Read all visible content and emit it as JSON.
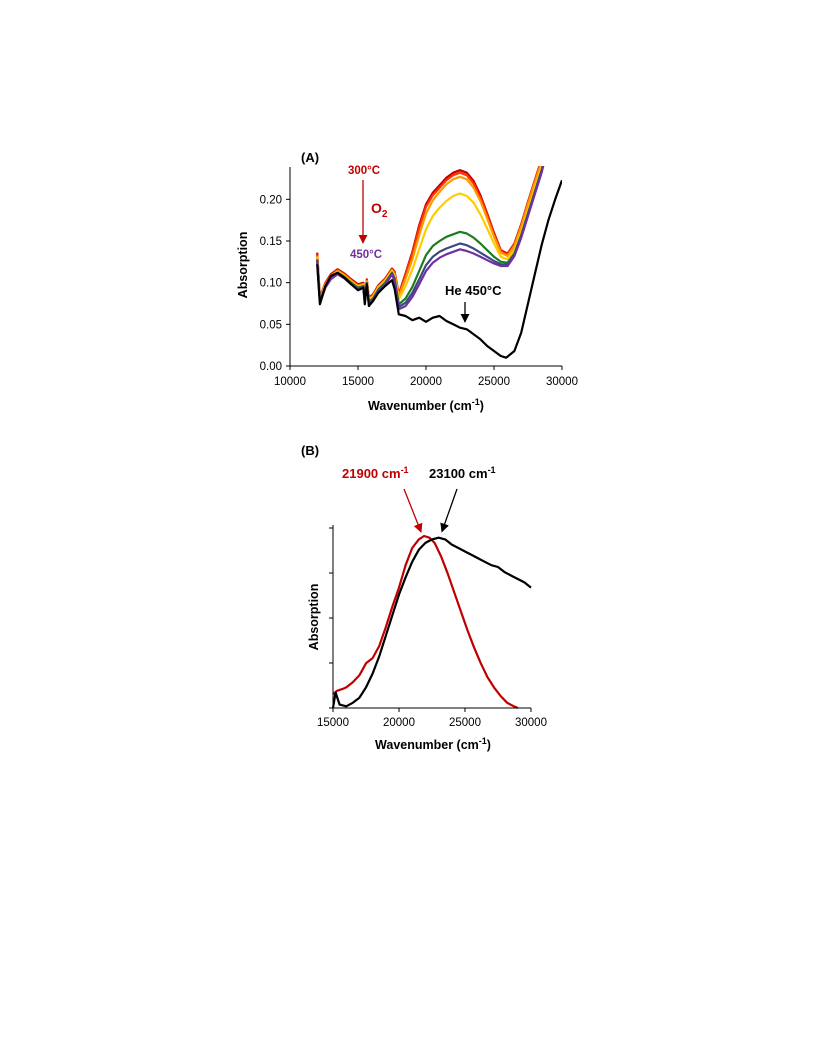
{
  "chart_data": [
    {
      "panel": "(A)",
      "type": "line",
      "xlabel": "Wavenumber (cm",
      "xlabel_sup": "-1",
      "xlabel_end": ")",
      "ylabel": "Absorption",
      "xlim": [
        10000,
        30000
      ],
      "ylim": [
        0,
        0.24
      ],
      "x_ticks": [
        10000,
        15000,
        20000,
        25000,
        30000
      ],
      "y_ticks": [
        "0.00",
        "0.05",
        "0.10",
        "0.15",
        "0.20"
      ],
      "grid": false,
      "annotations": {
        "start_temp": "300°C",
        "end_temp": "450°C",
        "gas": "O",
        "gas_sub": "2",
        "he_label": "He 450°C"
      },
      "colors": {
        "arrow_red": "#c00000",
        "purple_text": "#7030a0",
        "arrow_black": "#000000"
      },
      "series": [
        {
          "color": "#c00000",
          "x": [
            12000,
            12200,
            12600,
            13000,
            13500,
            14000,
            14500,
            15000,
            15400,
            15500,
            15650,
            15800,
            16100,
            16500,
            17000,
            17500,
            17700,
            18000,
            18500,
            19000,
            19500,
            20000,
            20500,
            21000,
            21500,
            22000,
            22500,
            23000,
            23500,
            24000,
            24500,
            25000,
            25500,
            26000,
            26500,
            27000,
            27500,
            28000,
            28500,
            28800
          ],
          "y": [
            0.136,
            0.082,
            0.1,
            0.11,
            0.116,
            0.111,
            0.104,
            0.098,
            0.1,
            0.082,
            0.104,
            0.082,
            0.086,
            0.097,
            0.105,
            0.117,
            0.113,
            0.086,
            0.111,
            0.137,
            0.169,
            0.194,
            0.208,
            0.217,
            0.226,
            0.232,
            0.235,
            0.232,
            0.222,
            0.205,
            0.183,
            0.16,
            0.139,
            0.135,
            0.147,
            0.17,
            0.197,
            0.223,
            0.248,
            0.265
          ]
        },
        {
          "color": "#ff3300",
          "x": [
            12000,
            12200,
            12600,
            13000,
            13500,
            14000,
            14500,
            15000,
            15400,
            15500,
            15650,
            15800,
            16100,
            16500,
            17000,
            17500,
            17700,
            18000,
            18500,
            19000,
            19500,
            20000,
            20500,
            21000,
            21500,
            22000,
            22500,
            23000,
            23500,
            24000,
            24500,
            25000,
            25500,
            26000,
            26500,
            27000,
            27500,
            28000,
            28500,
            28800
          ],
          "y": [
            0.134,
            0.081,
            0.099,
            0.109,
            0.115,
            0.11,
            0.103,
            0.097,
            0.099,
            0.081,
            0.103,
            0.081,
            0.085,
            0.096,
            0.104,
            0.116,
            0.112,
            0.085,
            0.109,
            0.135,
            0.166,
            0.191,
            0.205,
            0.214,
            0.223,
            0.229,
            0.232,
            0.229,
            0.219,
            0.202,
            0.181,
            0.158,
            0.138,
            0.134,
            0.146,
            0.169,
            0.196,
            0.222,
            0.247,
            0.264
          ]
        },
        {
          "color": "#ff9900",
          "x": [
            12000,
            12200,
            12600,
            13000,
            13500,
            14000,
            14500,
            15000,
            15400,
            15500,
            15650,
            15800,
            16100,
            16500,
            17000,
            17500,
            17700,
            18000,
            18500,
            19000,
            19500,
            20000,
            20500,
            21000,
            21500,
            22000,
            22500,
            23000,
            23500,
            24000,
            24500,
            25000,
            25500,
            26000,
            26500,
            27000,
            27500,
            28000,
            28500,
            28800
          ],
          "y": [
            0.132,
            0.08,
            0.098,
            0.108,
            0.114,
            0.109,
            0.102,
            0.096,
            0.098,
            0.08,
            0.102,
            0.08,
            0.084,
            0.095,
            0.103,
            0.115,
            0.11,
            0.083,
            0.105,
            0.128,
            0.157,
            0.183,
            0.199,
            0.209,
            0.218,
            0.224,
            0.227,
            0.224,
            0.214,
            0.198,
            0.177,
            0.155,
            0.136,
            0.132,
            0.144,
            0.167,
            0.194,
            0.22,
            0.245,
            0.263
          ]
        },
        {
          "color": "#ffcc00",
          "x": [
            12000,
            12200,
            12600,
            13000,
            13500,
            14000,
            14500,
            15000,
            15400,
            15500,
            15650,
            15800,
            16100,
            16500,
            17000,
            17500,
            17700,
            18000,
            18500,
            19000,
            19500,
            20000,
            20500,
            21000,
            21500,
            22000,
            22500,
            23000,
            23500,
            24000,
            24500,
            25000,
            25500,
            26000,
            26500,
            27000,
            27500,
            28000,
            28500,
            28800
          ],
          "y": [
            0.13,
            0.079,
            0.097,
            0.107,
            0.113,
            0.108,
            0.101,
            0.095,
            0.097,
            0.079,
            0.101,
            0.079,
            0.083,
            0.094,
            0.102,
            0.114,
            0.108,
            0.08,
            0.096,
            0.116,
            0.14,
            0.164,
            0.18,
            0.19,
            0.198,
            0.204,
            0.207,
            0.204,
            0.196,
            0.182,
            0.165,
            0.147,
            0.131,
            0.128,
            0.139,
            0.161,
            0.187,
            0.213,
            0.239,
            0.258
          ]
        },
        {
          "color": "#1e7b1e",
          "x": [
            12000,
            12200,
            12600,
            13000,
            13500,
            14000,
            14500,
            15000,
            15400,
            15500,
            15650,
            15800,
            16100,
            16500,
            17000,
            17500,
            17700,
            18000,
            18500,
            19000,
            19500,
            20000,
            20500,
            21000,
            21500,
            22000,
            22500,
            23000,
            23500,
            24000,
            24500,
            25000,
            25500,
            26000,
            26500,
            27000,
            27500,
            28000,
            28500,
            28800
          ],
          "y": [
            0.128,
            0.078,
            0.096,
            0.106,
            0.112,
            0.107,
            0.1,
            0.094,
            0.096,
            0.078,
            0.1,
            0.077,
            0.081,
            0.092,
            0.1,
            0.112,
            0.105,
            0.074,
            0.081,
            0.095,
            0.114,
            0.133,
            0.144,
            0.15,
            0.155,
            0.158,
            0.161,
            0.159,
            0.154,
            0.147,
            0.139,
            0.131,
            0.125,
            0.124,
            0.135,
            0.157,
            0.183,
            0.209,
            0.235,
            0.255
          ]
        },
        {
          "color": "#3a4a80",
          "x": [
            12000,
            12200,
            12600,
            13000,
            13500,
            14000,
            14500,
            15000,
            15400,
            15500,
            15650,
            15800,
            16100,
            16500,
            17000,
            17500,
            17700,
            18000,
            18500,
            19000,
            19500,
            20000,
            20500,
            21000,
            21500,
            22000,
            22500,
            23000,
            23500,
            24000,
            24500,
            25000,
            25500,
            26000,
            26500,
            27000,
            27500,
            28000,
            28500,
            28800
          ],
          "y": [
            0.127,
            0.077,
            0.095,
            0.105,
            0.111,
            0.106,
            0.099,
            0.093,
            0.095,
            0.077,
            0.099,
            0.076,
            0.08,
            0.091,
            0.099,
            0.111,
            0.103,
            0.071,
            0.076,
            0.088,
            0.104,
            0.121,
            0.131,
            0.137,
            0.141,
            0.144,
            0.147,
            0.145,
            0.141,
            0.136,
            0.131,
            0.126,
            0.122,
            0.122,
            0.134,
            0.156,
            0.182,
            0.208,
            0.234,
            0.254
          ]
        },
        {
          "color": "#7030a0",
          "x": [
            12000,
            12200,
            12600,
            13000,
            13500,
            14000,
            14500,
            15000,
            15400,
            15500,
            15650,
            15800,
            16100,
            16500,
            17000,
            17500,
            17700,
            18000,
            18500,
            19000,
            19500,
            20000,
            20500,
            21000,
            21500,
            22000,
            22500,
            23000,
            23500,
            24000,
            24500,
            25000,
            25500,
            26000,
            26500,
            27000,
            27500,
            28000,
            28500,
            28800
          ],
          "y": [
            0.126,
            0.076,
            0.094,
            0.104,
            0.11,
            0.105,
            0.098,
            0.092,
            0.094,
            0.076,
            0.098,
            0.074,
            0.078,
            0.089,
            0.097,
            0.11,
            0.101,
            0.068,
            0.072,
            0.083,
            0.098,
            0.114,
            0.124,
            0.13,
            0.134,
            0.137,
            0.14,
            0.138,
            0.135,
            0.131,
            0.127,
            0.123,
            0.12,
            0.12,
            0.132,
            0.154,
            0.18,
            0.206,
            0.232,
            0.252
          ]
        },
        {
          "color": "#000000",
          "x": [
            12000,
            12200,
            12600,
            13000,
            13500,
            14000,
            14500,
            15000,
            15400,
            15500,
            15650,
            15800,
            16100,
            16500,
            17000,
            17500,
            17700,
            18000,
            18500,
            19000,
            19500,
            20000,
            20500,
            21000,
            21500,
            22000,
            22500,
            23000,
            23500,
            24000,
            24500,
            25000,
            25500,
            25900,
            26500,
            27000,
            27500,
            28000,
            28500,
            29000,
            29500,
            30000
          ],
          "y": [
            0.122,
            0.074,
            0.096,
            0.108,
            0.112,
            0.106,
            0.098,
            0.091,
            0.094,
            0.074,
            0.098,
            0.072,
            0.078,
            0.088,
            0.096,
            0.103,
            0.092,
            0.062,
            0.06,
            0.055,
            0.058,
            0.053,
            0.058,
            0.06,
            0.054,
            0.05,
            0.046,
            0.044,
            0.038,
            0.032,
            0.024,
            0.018,
            0.012,
            0.01,
            0.018,
            0.04,
            0.075,
            0.11,
            0.145,
            0.175,
            0.2,
            0.223
          ]
        }
      ]
    },
    {
      "panel": "(B)",
      "type": "line",
      "xlabel": "Wavenumber (cm",
      "xlabel_sup": "-1",
      "xlabel_end": ")",
      "ylabel": "Absorption",
      "xlim": [
        15000,
        30000
      ],
      "ylim": [
        0,
        1
      ],
      "x_ticks": [
        15000,
        20000,
        25000,
        30000
      ],
      "grid": false,
      "annotations": {
        "red_peak_value": "21900 cm",
        "black_peak_value": "23100 cm",
        "peak_sup": "-1",
        "red_peak_x": 21900,
        "black_peak_x": 23100
      },
      "series": [
        {
          "color": "#c00000",
          "x": [
            15000,
            15300,
            15700,
            16000,
            16500,
            17000,
            17500,
            18000,
            18500,
            19000,
            19500,
            20000,
            20500,
            21000,
            21500,
            21900,
            22300,
            22700,
            23200,
            23700,
            24200,
            24700,
            25200,
            25700,
            26200,
            26700,
            27200,
            27700,
            28200,
            28700,
            29000
          ],
          "y": [
            0.08,
            0.1,
            0.11,
            0.12,
            0.15,
            0.19,
            0.26,
            0.29,
            0.36,
            0.47,
            0.59,
            0.7,
            0.83,
            0.93,
            0.98,
            1.0,
            0.99,
            0.96,
            0.88,
            0.78,
            0.67,
            0.56,
            0.45,
            0.35,
            0.26,
            0.18,
            0.12,
            0.07,
            0.03,
            0.01,
            0.0
          ]
        },
        {
          "color": "#000000",
          "x": [
            15000,
            15200,
            15500,
            16000,
            16500,
            17000,
            17500,
            18000,
            18500,
            19000,
            19500,
            20000,
            20500,
            21000,
            21500,
            22000,
            22500,
            23000,
            23500,
            24000,
            24500,
            25000,
            25500,
            26000,
            26500,
            27000,
            27500,
            28000,
            28500,
            29000,
            29500,
            30000
          ],
          "y": [
            0.0,
            0.09,
            0.02,
            0.01,
            0.03,
            0.06,
            0.12,
            0.2,
            0.3,
            0.42,
            0.54,
            0.66,
            0.76,
            0.85,
            0.92,
            0.96,
            0.98,
            0.99,
            0.98,
            0.95,
            0.93,
            0.91,
            0.89,
            0.87,
            0.85,
            0.83,
            0.82,
            0.79,
            0.77,
            0.75,
            0.73,
            0.7
          ]
        }
      ]
    }
  ]
}
